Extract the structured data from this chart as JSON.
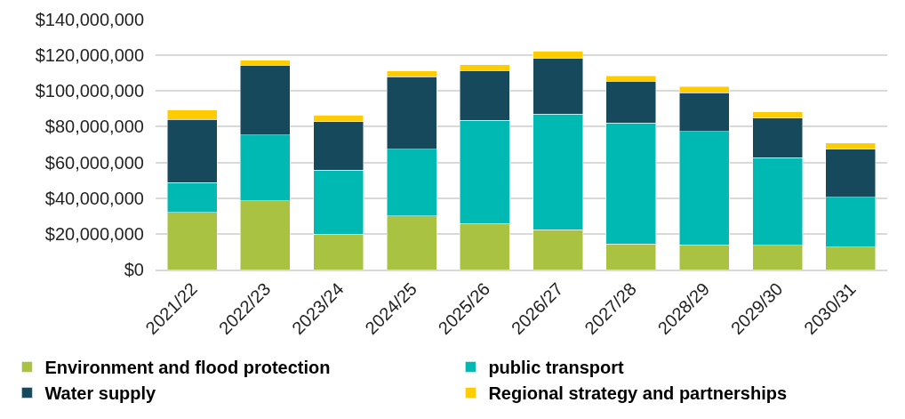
{
  "chart_data": {
    "type": "bar",
    "stacked": true,
    "categories": [
      "2021/22",
      "2022/23",
      "2023/24",
      "2024/25",
      "2025/26",
      "2026/27",
      "2027/28",
      "2028/29",
      "2029/30",
      "2030/31"
    ],
    "series": [
      {
        "name": "Environment and flood protection",
        "color": "#aac241",
        "values": [
          32100000,
          38500000,
          19700000,
          29900000,
          25900000,
          22400000,
          14400000,
          13900000,
          13500000,
          12600000
        ]
      },
      {
        "name": "public transport",
        "color": "#00b9b3",
        "values": [
          16600000,
          36800000,
          35900000,
          37400000,
          57800000,
          64700000,
          67600000,
          63400000,
          49200000,
          28000000
        ]
      },
      {
        "name": "Water supply",
        "color": "#17495d",
        "values": [
          35300000,
          39200000,
          27300000,
          40600000,
          27900000,
          31400000,
          23400000,
          21700000,
          22200000,
          26800000
        ]
      },
      {
        "name": "Regional strategy and partnerships",
        "color": "#ffcc00",
        "values": [
          5300000,
          2700000,
          3300000,
          3300000,
          3100000,
          3800000,
          3200000,
          3600000,
          3500000,
          3500000
        ]
      }
    ],
    "ylim": [
      0,
      140000000
    ],
    "yticks": [
      {
        "value": 0,
        "label": "$0"
      },
      {
        "value": 20000000,
        "label": "$20,000,000"
      },
      {
        "value": 40000000,
        "label": "$40,000,000"
      },
      {
        "value": 60000000,
        "label": "$60,000,000"
      },
      {
        "value": 80000000,
        "label": "$80,000,000"
      },
      {
        "value": 100000000,
        "label": "$100,000,000"
      },
      {
        "value": 120000000,
        "label": "$120,000,000"
      },
      {
        "value": 140000000,
        "label": "$140,000,000"
      }
    ],
    "grid": "y",
    "legend": "bottom"
  }
}
